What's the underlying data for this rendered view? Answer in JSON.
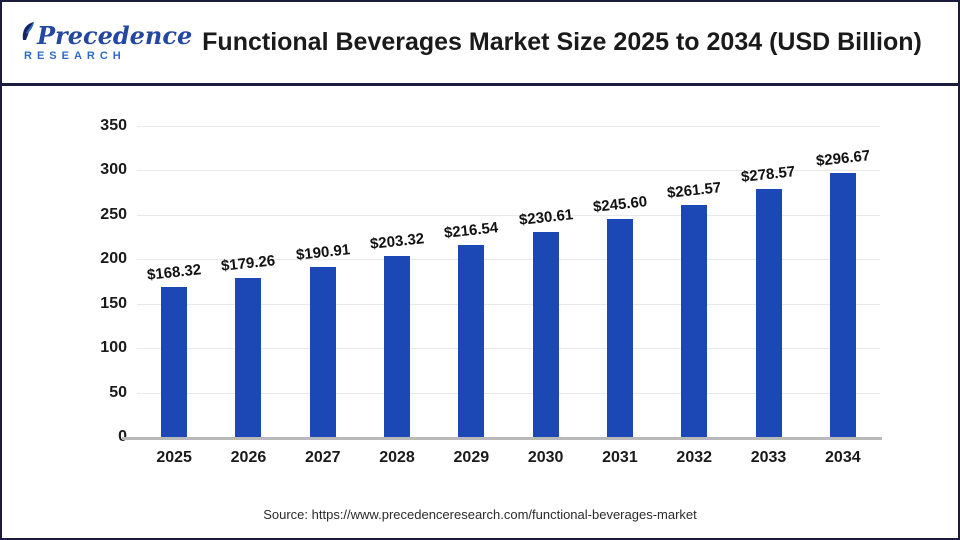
{
  "header": {
    "logo": {
      "line1": "Precedence",
      "line2": "RESEARCH",
      "leaf_icon": "leaf-icon",
      "name_color": "#24479f",
      "sub_color": "#2f6bc6"
    },
    "title": "Functional Beverages Market Size 2025 to 2034 (USD Billion)"
  },
  "chart_data": {
    "type": "bar",
    "title": "Functional Beverages Market Size 2025 to 2034 (USD Billion)",
    "categories": [
      "2025",
      "2026",
      "2027",
      "2028",
      "2029",
      "2030",
      "2031",
      "2032",
      "2033",
      "2034"
    ],
    "values": [
      168.32,
      179.26,
      190.91,
      203.32,
      216.54,
      230.61,
      245.6,
      261.57,
      278.57,
      296.67
    ],
    "value_labels": [
      "$168.32",
      "$179.26",
      "$190.91",
      "$203.32",
      "$216.54",
      "$230.61",
      "$245.60",
      "$261.57",
      "$278.57",
      "$296.67"
    ],
    "xlabel": "",
    "ylabel": "",
    "ylim": [
      0,
      350
    ],
    "yticks": [
      0,
      50,
      100,
      150,
      200,
      250,
      300,
      350
    ],
    "grid": true,
    "legend": false,
    "bar_color": "#1b48b5",
    "grid_color": "#e9e9e9",
    "axis_line_color": "#b9b9b9",
    "label_color": "#111111"
  },
  "footer": {
    "source": "Source: https://www.precedenceresearch.com/functional-beverages-market"
  },
  "colors": {
    "frame_border": "#1b1b3d",
    "background": "#ffffff",
    "title_text": "#1a1a1a"
  }
}
